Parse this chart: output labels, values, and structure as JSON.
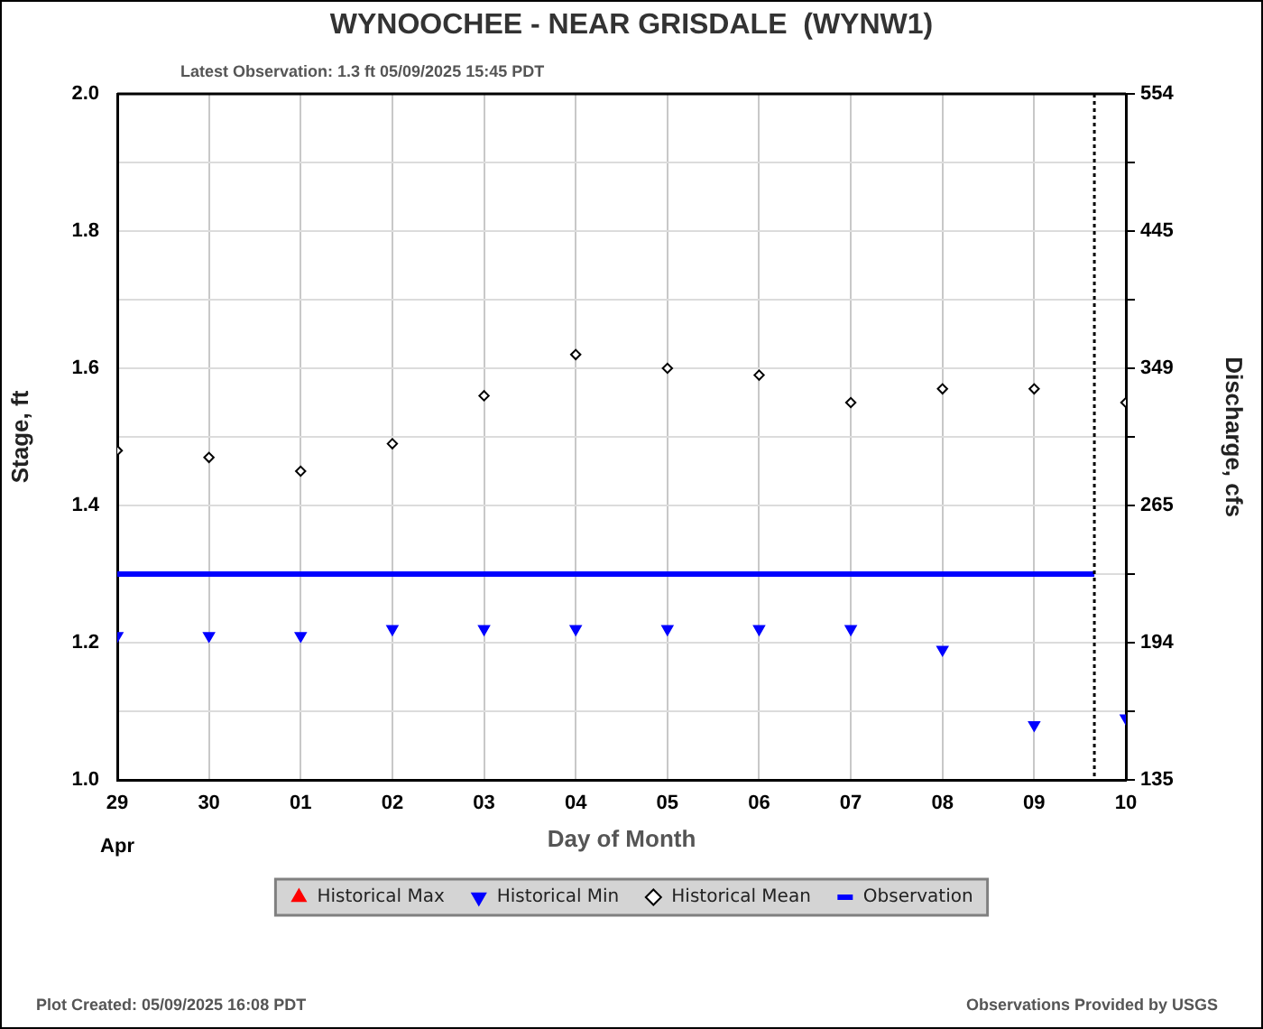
{
  "chart_data": {
    "type": "scatter",
    "title": "WYNOOCHEE - NEAR GRISDALE  (WYNW1)",
    "subtitle": "Latest Observation: 1.3 ft 05/09/2025 15:45 PDT",
    "xlabel": "Day of Month",
    "ylabel": "Stage, ft",
    "y2label": "Discharge, cfs",
    "annotations": [
      "Plot Created: 05/09/2025 16:08 PDT",
      "Observations Provided by USGS"
    ],
    "x": [
      "2025-04-29",
      "2025-04-30",
      "2025-05-01",
      "2025-05-02",
      "2025-05-03",
      "2025-05-04",
      "2025-05-05",
      "2025-05-06",
      "2025-05-07",
      "2025-05-08",
      "2025-05-09",
      "2025-05-10"
    ],
    "series": [
      {
        "name": "Historical Max",
        "type": "scatter",
        "color": "#ff0000",
        "marker": "triangle",
        "values": [
          null,
          null,
          null,
          null,
          null,
          null,
          null,
          null,
          null,
          null,
          null,
          null
        ]
      },
      {
        "name": "Historical Min",
        "type": "scatter",
        "color": "#0000ff",
        "marker": "triangle-down",
        "values": [
          1.21,
          1.21,
          1.21,
          1.22,
          1.22,
          1.22,
          1.22,
          1.22,
          1.22,
          1.19,
          1.08,
          1.09
        ]
      },
      {
        "name": "Historical Mean",
        "type": "scatter",
        "color": "#000000",
        "marker": "diamond",
        "values": [
          1.48,
          1.47,
          1.45,
          1.49,
          1.56,
          1.62,
          1.6,
          1.59,
          1.55,
          1.57,
          1.57,
          1.55
        ]
      },
      {
        "name": "Observation",
        "type": "line",
        "color": "#0000ff",
        "marker": "none",
        "x": [
          "2025-04-29",
          "2025-05-09T15:45"
        ],
        "values": [
          1.3,
          1.3
        ]
      }
    ],
    "xlim": [
      "2025-04-29",
      "2025-05-10"
    ],
    "xticks": [
      {
        "value": "2025-04-29",
        "label": "29\nApr"
      },
      {
        "value": "2025-04-30",
        "label": "30"
      },
      {
        "value": "2025-05-01",
        "label": "01"
      },
      {
        "value": "2025-05-02",
        "label": "02"
      },
      {
        "value": "2025-05-03",
        "label": "03"
      },
      {
        "value": "2025-05-04",
        "label": "04"
      },
      {
        "value": "2025-05-05",
        "label": "05"
      },
      {
        "value": "2025-05-06",
        "label": "06"
      },
      {
        "value": "2025-05-07",
        "label": "07"
      },
      {
        "value": "2025-05-08",
        "label": "08"
      },
      {
        "value": "2025-05-09",
        "label": "09"
      },
      {
        "value": "2025-05-10",
        "label": "10"
      }
    ],
    "ylim": [
      1,
      2
    ],
    "yticks": [
      {
        "value": 1,
        "label": "1.0"
      },
      {
        "value": 1.1,
        "label": null
      },
      1.2,
      {
        "value": 1.3,
        "label": null
      },
      1.4,
      {
        "value": 1.5,
        "label": null
      },
      1.6,
      {
        "value": 1.7,
        "label": null
      },
      1.8,
      {
        "value": 1.9,
        "label": null
      },
      {
        "value": 2,
        "label": "2.0"
      }
    ],
    "y2_categories": [
      "554",
      null,
      "445",
      null,
      "349",
      null,
      "265",
      null,
      "194",
      null,
      "135"
    ],
    "ref_lines": [
      {
        "axis": "x",
        "value": "2025-05-09T15:45",
        "color": "#000000",
        "line_style": "dotted"
      }
    ],
    "grid": true,
    "legend": "bottom"
  }
}
